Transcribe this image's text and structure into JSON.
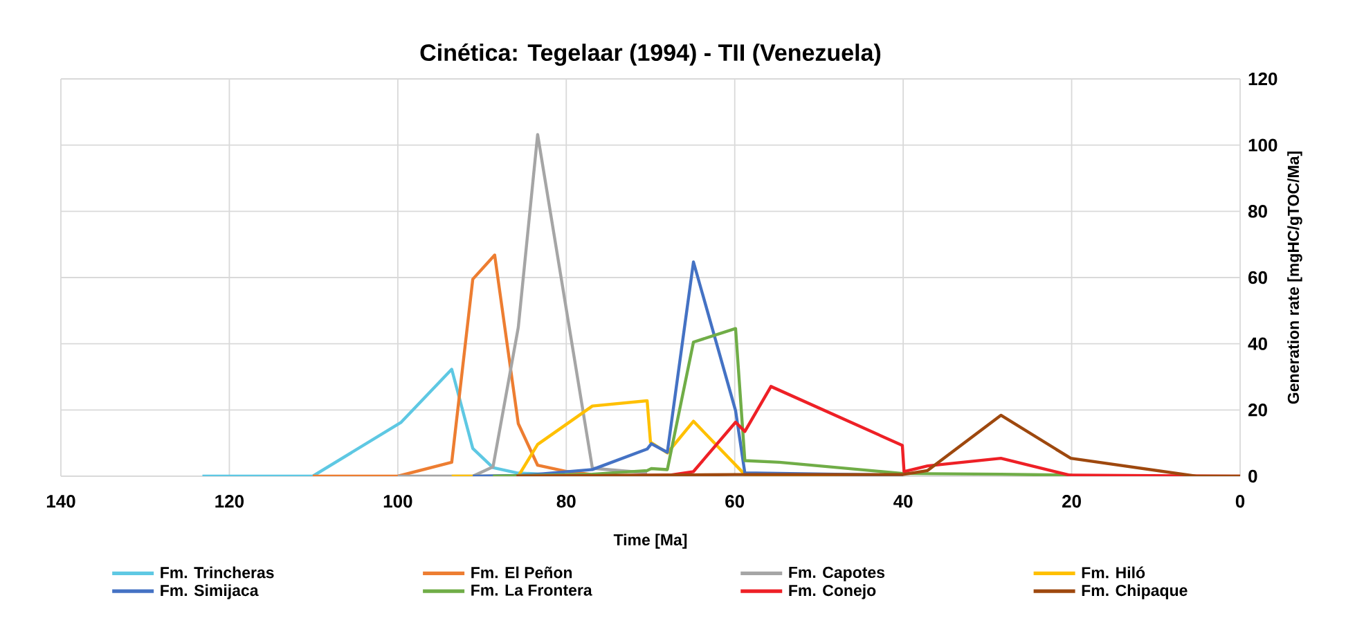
{
  "chart_data": {
    "type": "line",
    "title": "Cinética: Tegelaar (1994) - TII (Venezuela)",
    "xlabel": "Time [Ma]",
    "ylabel": "Generation rate [mgHC/gTOC/Ma]",
    "xlim": [
      140,
      0
    ],
    "xticks": [
      140,
      120,
      100,
      80,
      60,
      40,
      20,
      0
    ],
    "ylim": [
      0,
      120
    ],
    "yticks": [
      0,
      20,
      40,
      60,
      80,
      100,
      120
    ],
    "grid": true,
    "legend": "bottom",
    "series": [
      {
        "name": "Fm. Trincheras",
        "color": "#5ec8e3",
        "x": [
          123.2,
          110.1,
          99.6,
          93.6,
          91.1,
          88.7,
          85.9,
          80
        ],
        "values": [
          0,
          0,
          16.3,
          32.3,
          8.4,
          2.6,
          1.0,
          0.2
        ]
      },
      {
        "name": "Fm. El Peñon",
        "color": "#ed7d31",
        "x": [
          110.1,
          100,
          93.6,
          91.1,
          88.5,
          85.7,
          83.4,
          79.9,
          76.9
        ],
        "values": [
          0,
          0,
          4.2,
          59.5,
          66.8,
          15.9,
          3.3,
          1.4,
          0.5
        ]
      },
      {
        "name": "Fm. Capotes",
        "color": "#a5a5a5",
        "x": [
          100,
          91.1,
          88.7,
          85.7,
          83.4,
          76.9,
          70.4
        ],
        "values": [
          0,
          0,
          2.8,
          44.9,
          103.2,
          2.4,
          1.0
        ]
      },
      {
        "name": "Fm. Hiló",
        "color": "#ffc000",
        "x": [
          93.6,
          85.7,
          83.4,
          76.9,
          70.4,
          70.0,
          68.0,
          64.9,
          58.8,
          40
        ],
        "values": [
          0,
          0,
          9.6,
          21.2,
          22.8,
          10.3,
          7.0,
          16.6,
          0.5,
          0
        ]
      },
      {
        "name": "Fm. Simijaca",
        "color": "#4472c4",
        "x": [
          91.1,
          85.7,
          83.4,
          76.9,
          70.4,
          69.9,
          68.0,
          64.9,
          59.9,
          58.8,
          40
        ],
        "values": [
          0,
          0.2,
          0.6,
          2.0,
          8.2,
          9.8,
          7.2,
          64.7,
          19.8,
          1.0,
          0.3
        ]
      },
      {
        "name": "Fm. La Frontera",
        "color": "#70ad47",
        "x": [
          88.7,
          76.9,
          70.4,
          69.9,
          68.0,
          64.9,
          59.9,
          58.8,
          54.7,
          40,
          28.4,
          20
        ],
        "values": [
          0,
          0.6,
          1.7,
          2.3,
          2.0,
          40.5,
          44.6,
          4.7,
          4.2,
          0.8,
          0.6,
          0.3
        ]
      },
      {
        "name": "Fm. Conejo",
        "color": "#ee2026",
        "x": [
          85.9,
          67.8,
          64.9,
          59.9,
          58.8,
          55.7,
          40.1,
          39.9,
          37.1,
          28.4,
          20.2,
          0
        ],
        "values": [
          0,
          0.3,
          1.4,
          16.3,
          13.5,
          27.1,
          9.3,
          1.4,
          3.1,
          5.4,
          0.3,
          0
        ]
      },
      {
        "name": "Fm. Chipaque",
        "color": "#9e480e",
        "x": [
          85.9,
          60,
          40.1,
          37.1,
          28.4,
          20.1,
          5.2,
          0
        ],
        "values": [
          0,
          0.5,
          0.5,
          1.7,
          18.4,
          5.4,
          0,
          0
        ]
      }
    ]
  }
}
